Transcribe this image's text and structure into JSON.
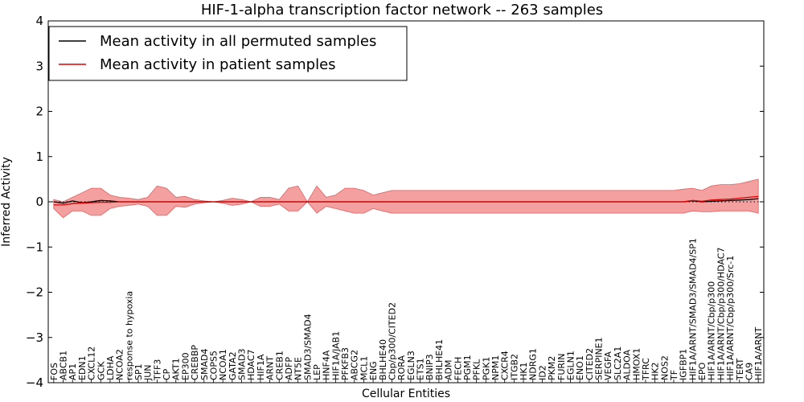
{
  "chart_data": {
    "type": "line",
    "title": "HIF-1-alpha transcription factor network -- 263 samples",
    "xlabel": "Cellular Entities",
    "ylabel": "Inferred Activity",
    "ylim": [
      -4,
      4
    ],
    "yticks": [
      -4,
      -3,
      -2,
      -1,
      0,
      1,
      2,
      3,
      4
    ],
    "ytick_labels": [
      "−4",
      "−3",
      "−2",
      "−1",
      "0",
      "1",
      "2",
      "3",
      "4"
    ],
    "legend_position": "top-left",
    "colors": {
      "permuted": "#000000",
      "patient": "#e00000",
      "band": "#f08080",
      "zero_line": "#000000"
    },
    "categories": [
      "FOS",
      "ABCB1",
      "AP1",
      "EDN1",
      "CXCL12",
      "GCK",
      "LDHA",
      "NCOA2",
      "response to hypoxia",
      "SP1",
      "JUN",
      "TFF3",
      "CP",
      "AKT1",
      "EP300",
      "CREBBP",
      "SMAD4",
      "COPS5",
      "NCOA1",
      "GATA2",
      "SMAD3",
      "HDAC7",
      "HIF1A",
      "ARNT",
      "CREB1",
      "ADFP",
      "NT5E",
      "SMAD3/SMAD4",
      "LEP",
      "HNF4A",
      "HIF1A/JAB1",
      "PFKFB3",
      "ABCG2",
      "MCL1",
      "ENG",
      "BHLHE40",
      "Cbp/p300/CITED2",
      "RORA",
      "EGLN3",
      "ETS1",
      "BNIP3",
      "BHLHE41",
      "ADM",
      "FECH",
      "PGM1",
      "PFKL",
      "PGK1",
      "NPM1",
      "CXCR4",
      "ITGB2",
      "HK1",
      "NDRG1",
      "ID2",
      "PKM2",
      "FURIN",
      "EGLN1",
      "ENO1",
      "CITED2",
      "SERPINE1",
      "VEGFA",
      "SLC2A1",
      "ALDOA",
      "HMOX1",
      "TFRC",
      "HK2",
      "NOS2",
      "TF",
      "IGFBP1",
      "HIF1A/ARNT/SMAD3/SMAD4/SP1",
      "EPO",
      "HIF1A/ARNT/Cbp/p300",
      "HIF1A/ARNT/Cbp/p300/HDAC7",
      "HIF1A/ARNT/Cbp/p300/Src-1",
      "TERT",
      "CA9",
      "HIF1A/ARNT"
    ],
    "series": [
      {
        "name": "Mean activity in all permuted samples",
        "values": [
          0.0,
          -0.03,
          0.02,
          -0.02,
          0.0,
          0.03,
          0.02,
          0.0,
          0.0,
          0.0,
          0.0,
          0.0,
          0.0,
          0.0,
          0.0,
          0.0,
          0.0,
          0.0,
          0.0,
          0.0,
          0.0,
          0.0,
          0.0,
          0.0,
          0.0,
          0.0,
          0.0,
          0.0,
          0.0,
          0.0,
          0.0,
          0.0,
          0.0,
          0.0,
          0.0,
          0.0,
          0.0,
          0.0,
          0.0,
          0.0,
          0.0,
          0.0,
          0.0,
          0.0,
          0.0,
          0.0,
          0.0,
          0.0,
          0.0,
          0.0,
          0.0,
          0.0,
          0.0,
          0.0,
          0.0,
          0.0,
          0.0,
          0.0,
          0.0,
          0.0,
          0.0,
          0.0,
          0.0,
          0.0,
          0.0,
          0.0,
          0.0,
          0.0,
          0.02,
          0.0,
          0.01,
          0.02,
          0.03,
          0.04,
          0.05,
          0.07
        ]
      },
      {
        "name": "Mean activity in patient samples",
        "values": [
          -0.07,
          -0.07,
          -0.04,
          -0.03,
          -0.02,
          -0.01,
          -0.01,
          0.0,
          0.0,
          0.0,
          0.0,
          0.0,
          0.0,
          0.0,
          0.0,
          0.0,
          0.0,
          0.0,
          0.0,
          0.0,
          0.0,
          0.0,
          0.0,
          0.0,
          0.0,
          0.0,
          0.0,
          0.0,
          0.0,
          0.0,
          0.0,
          0.0,
          0.0,
          0.0,
          0.0,
          0.0,
          0.0,
          0.0,
          0.0,
          0.0,
          0.0,
          0.0,
          0.0,
          0.0,
          0.0,
          0.0,
          0.0,
          0.0,
          0.0,
          0.0,
          0.0,
          0.0,
          0.0,
          0.0,
          0.0,
          0.0,
          0.0,
          0.0,
          0.0,
          0.0,
          0.0,
          0.0,
          0.0,
          0.0,
          0.0,
          0.0,
          0.0,
          0.0,
          0.03,
          0.01,
          0.04,
          0.05,
          0.06,
          0.08,
          0.1,
          0.12
        ]
      }
    ],
    "band": {
      "upper": [
        0.05,
        0.0,
        0.1,
        0.2,
        0.3,
        0.3,
        0.15,
        0.1,
        0.08,
        0.05,
        0.1,
        0.35,
        0.3,
        0.1,
        0.12,
        0.05,
        0.02,
        0.0,
        0.03,
        0.08,
        0.05,
        0.0,
        0.1,
        0.1,
        0.05,
        0.3,
        0.35,
        0.0,
        0.35,
        0.1,
        0.15,
        0.3,
        0.3,
        0.25,
        0.15,
        0.2,
        0.25,
        0.25,
        0.25,
        0.25,
        0.25,
        0.25,
        0.25,
        0.25,
        0.25,
        0.25,
        0.25,
        0.25,
        0.25,
        0.25,
        0.25,
        0.25,
        0.25,
        0.25,
        0.25,
        0.25,
        0.25,
        0.25,
        0.25,
        0.25,
        0.25,
        0.25,
        0.25,
        0.25,
        0.25,
        0.25,
        0.25,
        0.28,
        0.3,
        0.25,
        0.35,
        0.38,
        0.38,
        0.4,
        0.45,
        0.5
      ],
      "lower": [
        -0.15,
        -0.35,
        -0.2,
        -0.2,
        -0.3,
        -0.3,
        -0.15,
        -0.1,
        -0.08,
        -0.05,
        -0.1,
        -0.3,
        -0.3,
        -0.1,
        -0.12,
        -0.05,
        -0.02,
        0.0,
        -0.03,
        -0.08,
        -0.05,
        0.0,
        -0.1,
        -0.1,
        -0.05,
        -0.2,
        -0.2,
        0.0,
        -0.25,
        -0.1,
        -0.15,
        -0.2,
        -0.25,
        -0.25,
        -0.15,
        -0.2,
        -0.25,
        -0.25,
        -0.25,
        -0.25,
        -0.25,
        -0.25,
        -0.25,
        -0.25,
        -0.25,
        -0.25,
        -0.25,
        -0.25,
        -0.25,
        -0.25,
        -0.25,
        -0.25,
        -0.25,
        -0.25,
        -0.25,
        -0.25,
        -0.25,
        -0.25,
        -0.25,
        -0.25,
        -0.25,
        -0.25,
        -0.25,
        -0.25,
        -0.25,
        -0.25,
        -0.25,
        -0.25,
        -0.2,
        -0.22,
        -0.22,
        -0.2,
        -0.2,
        -0.2,
        -0.2,
        -0.25
      ]
    }
  }
}
